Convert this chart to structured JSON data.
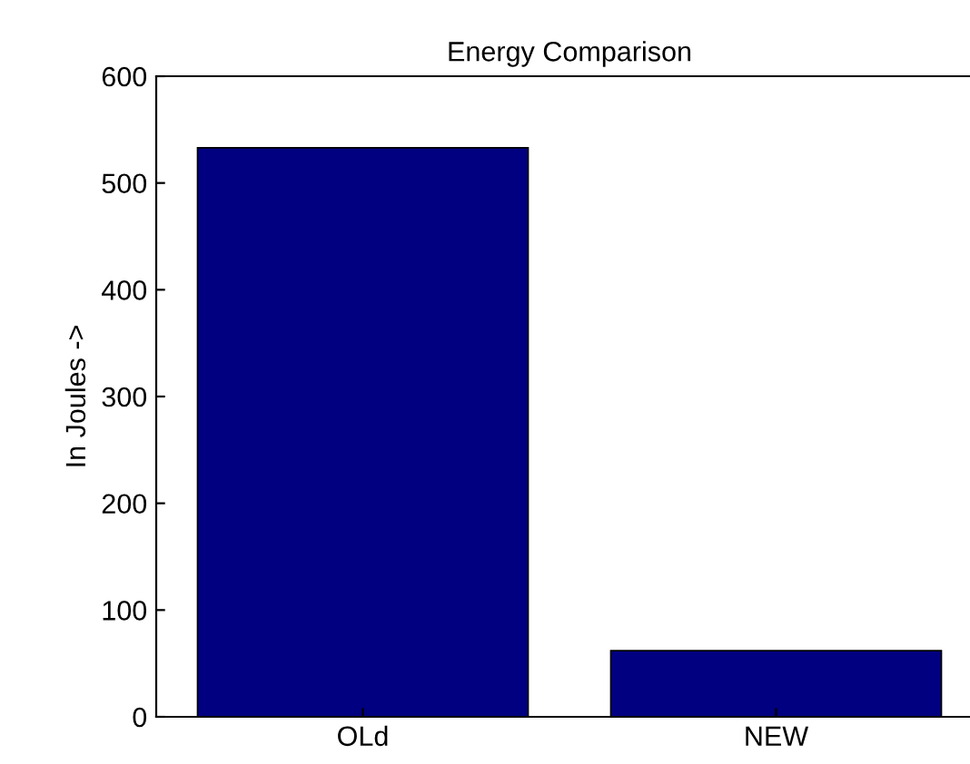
{
  "chart_data": {
    "type": "bar",
    "title": "Energy Comparison",
    "ylabel": "In Joules ->",
    "categories": [
      "OLd",
      "NEW"
    ],
    "values": [
      533,
      62
    ],
    "color": "#000080",
    "ylim": [
      0,
      600
    ],
    "yticks": [
      0,
      100,
      200,
      300,
      400,
      500,
      600
    ],
    "grid": false
  }
}
